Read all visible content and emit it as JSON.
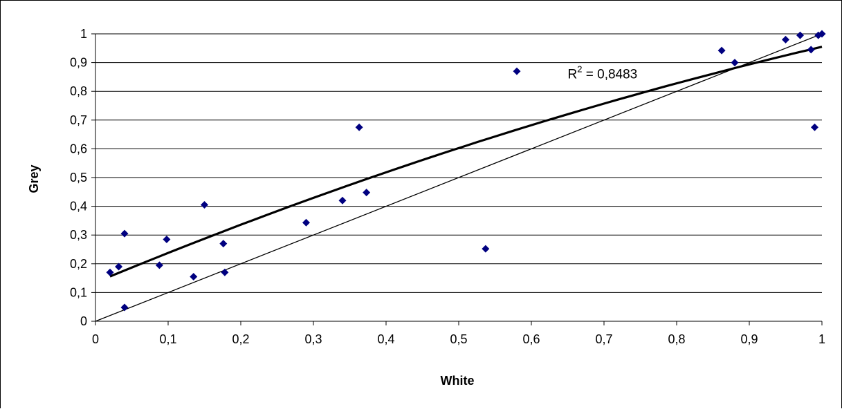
{
  "chart_data": {
    "type": "scatter",
    "title": "",
    "xlabel": "White",
    "ylabel": "Grey",
    "xlim": [
      0,
      1
    ],
    "ylim": [
      0,
      1
    ],
    "x_ticks": [
      "0",
      "0,1",
      "0,2",
      "0,3",
      "0,4",
      "0,5",
      "0,6",
      "0,7",
      "0,8",
      "0,9",
      "1"
    ],
    "y_ticks": [
      "0",
      "0,1",
      "0,2",
      "0,3",
      "0,4",
      "0,5",
      "0,6",
      "0,7",
      "0,8",
      "0,9",
      "1"
    ],
    "grid": "horizontal",
    "legend": "none",
    "marker_color": "#000080",
    "series": [
      {
        "points": [
          [
            0.02,
            0.17
          ],
          [
            0.032,
            0.19
          ],
          [
            0.04,
            0.305
          ],
          [
            0.04,
            0.048
          ],
          [
            0.088,
            0.195
          ],
          [
            0.098,
            0.285
          ],
          [
            0.135,
            0.155
          ],
          [
            0.15,
            0.405
          ],
          [
            0.176,
            0.27
          ],
          [
            0.178,
            0.17
          ],
          [
            0.29,
            0.343
          ],
          [
            0.34,
            0.42
          ],
          [
            0.363,
            0.675
          ],
          [
            0.373,
            0.448
          ],
          [
            0.537,
            0.252
          ],
          [
            0.58,
            0.87
          ],
          [
            0.862,
            0.942
          ],
          [
            0.88,
            0.9
          ],
          [
            0.95,
            0.98
          ],
          [
            0.97,
            0.995
          ],
          [
            0.985,
            0.945
          ],
          [
            0.99,
            0.675
          ],
          [
            0.995,
            0.995
          ],
          [
            1.0,
            1.0
          ]
        ]
      }
    ],
    "trendline": {
      "kind": "polynomial",
      "coefficients": [
        0.135,
        1.05,
        -0.23
      ],
      "x_range": [
        0.02,
        1.0
      ],
      "color": "#000000"
    },
    "reference_line": {
      "from": [
        0,
        0
      ],
      "to": [
        1,
        1
      ],
      "color": "#000000"
    },
    "annotation": {
      "prefix": "R",
      "superscript": "2",
      "text": " = 0,8483",
      "at": [
        0.65,
        0.845
      ]
    }
  }
}
